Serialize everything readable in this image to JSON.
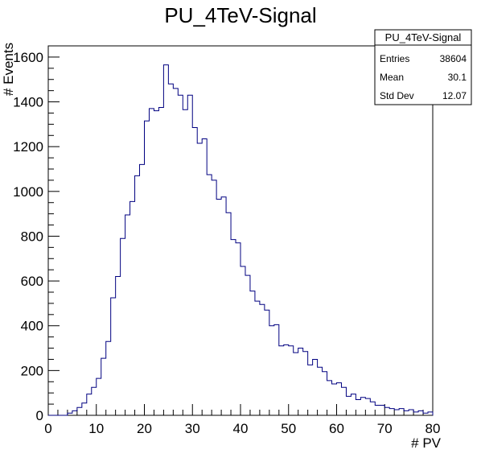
{
  "chart_data": {
    "type": "bar",
    "title": "PU_4TeV-Signal",
    "xlabel": "# PV",
    "ylabel": "# Events",
    "xlim": [
      0,
      80
    ],
    "ylim": [
      0,
      1650
    ],
    "xticks": [
      "0",
      "10",
      "20",
      "30",
      "40",
      "50",
      "60",
      "70",
      "80"
    ],
    "yticks": [
      "0",
      "200",
      "400",
      "600",
      "800",
      "1000",
      "1200",
      "1400",
      "1600"
    ],
    "bin_width": 1,
    "values": [
      0,
      0,
      0,
      0,
      10,
      20,
      35,
      55,
      95,
      125,
      165,
      255,
      330,
      525,
      620,
      790,
      895,
      955,
      1070,
      1120,
      1315,
      1370,
      1360,
      1375,
      1565,
      1480,
      1460,
      1430,
      1365,
      1430,
      1285,
      1215,
      1235,
      1075,
      1050,
      965,
      975,
      905,
      785,
      770,
      665,
      625,
      555,
      510,
      495,
      470,
      400,
      405,
      310,
      315,
      310,
      280,
      300,
      285,
      225,
      250,
      215,
      195,
      155,
      140,
      145,
      125,
      85,
      95,
      70,
      80,
      75,
      60,
      45,
      45,
      35,
      30,
      25,
      30,
      20,
      25,
      15,
      20,
      10,
      15
    ],
    "grid": false,
    "legend": "none",
    "color": "#000080",
    "stats_box": {
      "title": "PU_4TeV-Signal",
      "rows": [
        {
          "label": "Entries",
          "value": "38604"
        },
        {
          "label": "Mean",
          "value": "30.1"
        },
        {
          "label": "Std Dev",
          "value": "12.07"
        }
      ]
    }
  }
}
